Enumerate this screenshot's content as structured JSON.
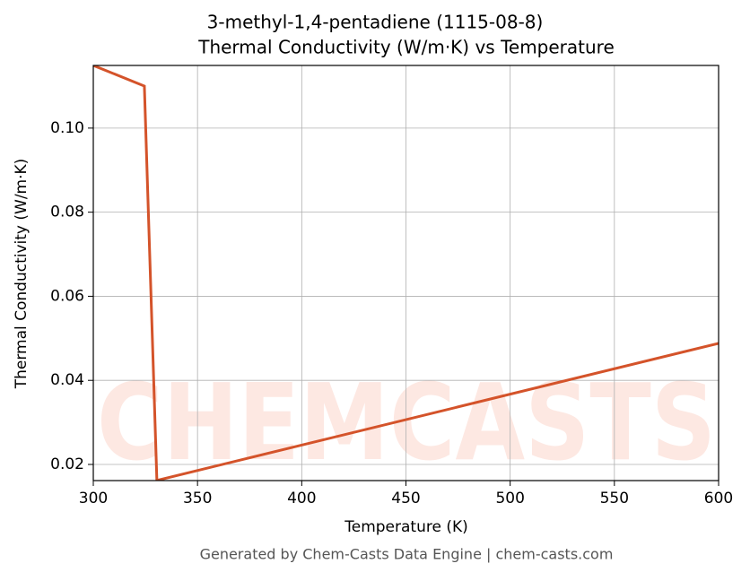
{
  "chart_data": {
    "type": "line",
    "title": "3-methyl-1,4-pentadiene (1115-08-8)",
    "subtitle": "Thermal Conductivity (W/m·K) vs Temperature",
    "xlabel": "Temperature (K)",
    "ylabel": "Thermal Conductivity (W/m·K)",
    "footer": "Generated by Chem-Casts Data Engine | chem-casts.com",
    "watermark": "CHEMCASTS",
    "x": [
      300,
      324.5,
      330.5,
      600
    ],
    "values": [
      0.1149,
      0.11,
      0.0162,
      0.0488
    ],
    "color": "#d4532a",
    "xlim": [
      300,
      600
    ],
    "xticks": [
      300,
      350,
      400,
      450,
      500,
      550,
      600
    ],
    "ylim": [
      0.01616,
      0.1149
    ],
    "yticks": [
      0.02,
      0.04,
      0.06,
      0.08,
      {
        "value": 0.1,
        "label": "0.10"
      }
    ],
    "grid": true
  }
}
